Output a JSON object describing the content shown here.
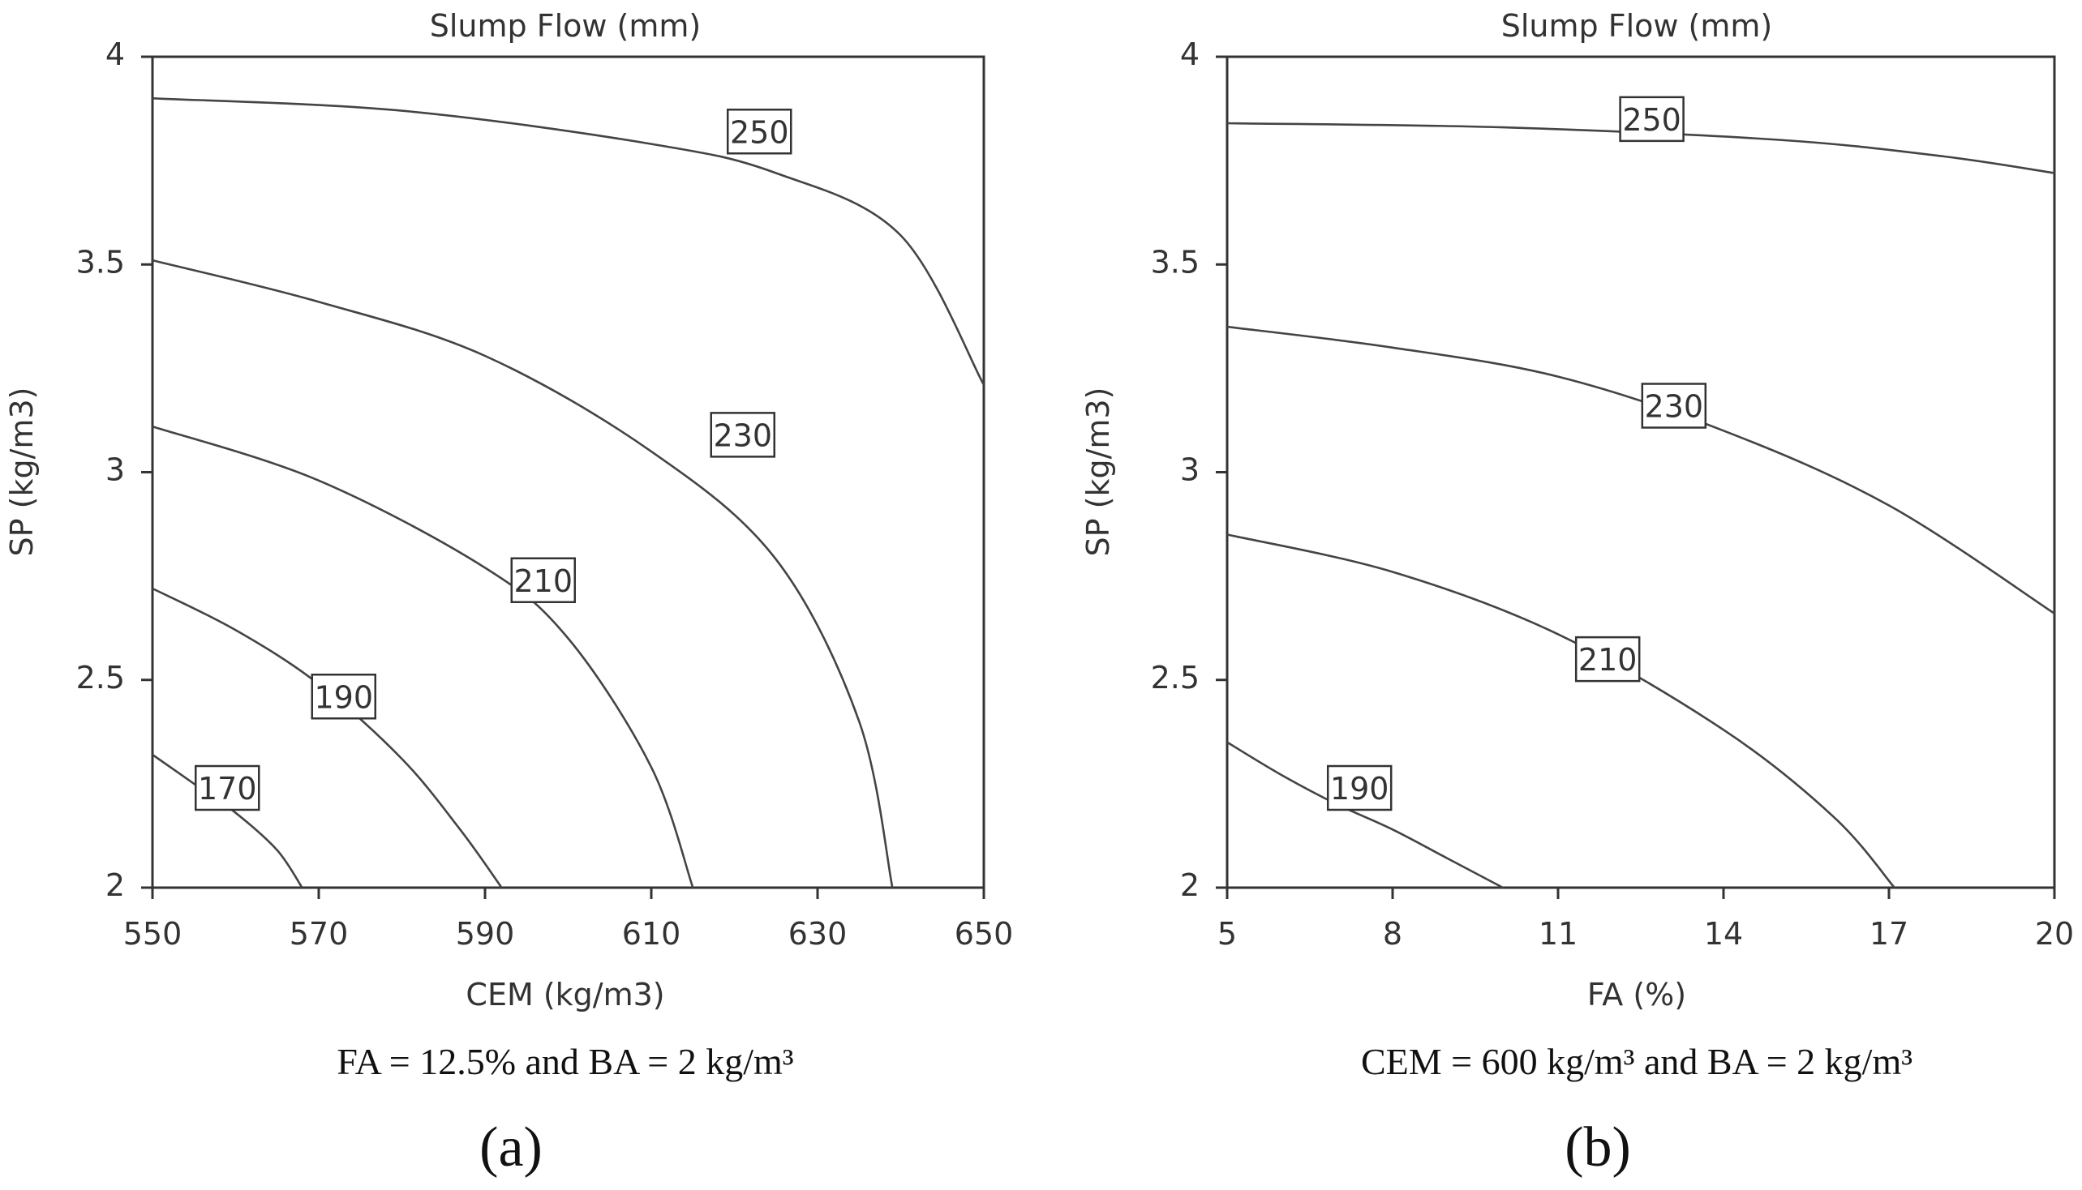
{
  "chart_data": [
    {
      "type": "contour",
      "panel_label": "(a)",
      "title": "Slump Flow (mm)",
      "xlabel": "CEM (kg/m3)",
      "ylabel": "SP (kg/m3)",
      "caption": "FA = 12.5% and BA = 2 kg/m³",
      "xlim": [
        550,
        650
      ],
      "ylim": [
        2,
        4
      ],
      "x_ticks": [
        "550",
        "570",
        "590",
        "610",
        "630",
        "650"
      ],
      "y_ticks": [
        "2",
        "2.5",
        "3",
        "3.5",
        "4"
      ],
      "levels": [
        {
          "level": 170,
          "label": "170",
          "label_at": [
            559,
            2.24
          ],
          "points": [
            [
              550,
              2.32
            ],
            [
              555,
              2.25
            ],
            [
              560,
              2.18
            ],
            [
              565,
              2.09
            ],
            [
              568,
              2.0
            ]
          ]
        },
        {
          "level": 190,
          "label": "190",
          "label_at": [
            573,
            2.46
          ],
          "points": [
            [
              550,
              2.72
            ],
            [
              560,
              2.62
            ],
            [
              570,
              2.49
            ],
            [
              580,
              2.31
            ],
            [
              587,
              2.14
            ],
            [
              592,
              2.0
            ]
          ]
        },
        {
          "level": 210,
          "label": "210",
          "label_at": [
            597,
            2.74
          ],
          "points": [
            [
              550,
              3.11
            ],
            [
              570,
              2.98
            ],
            [
              590,
              2.77
            ],
            [
              600,
              2.6
            ],
            [
              610,
              2.29
            ],
            [
              615,
              2.0
            ]
          ]
        },
        {
          "level": 230,
          "label": "230",
          "label_at": [
            621,
            3.09
          ],
          "points": [
            [
              550,
              3.51
            ],
            [
              570,
              3.41
            ],
            [
              590,
              3.28
            ],
            [
              610,
              3.05
            ],
            [
              625,
              2.79
            ],
            [
              635,
              2.4
            ],
            [
              639,
              2.0
            ]
          ]
        },
        {
          "level": 250,
          "label": "250",
          "label_at": [
            623,
            3.82
          ],
          "points": [
            [
              550,
              3.9
            ],
            [
              580,
              3.87
            ],
            [
              610,
              3.79
            ],
            [
              625,
              3.72
            ],
            [
              640,
              3.57
            ],
            [
              650,
              3.21
            ]
          ]
        }
      ]
    },
    {
      "type": "contour",
      "panel_label": "(b)",
      "title": "Slump Flow (mm)",
      "xlabel": "FA (%)",
      "ylabel": "SP (kg/m3)",
      "caption": "CEM = 600 kg/m³ and BA = 2 kg/m³",
      "xlim": [
        5,
        20
      ],
      "ylim": [
        2,
        4
      ],
      "x_ticks": [
        "5",
        "8",
        "11",
        "14",
        "17",
        "20"
      ],
      "y_ticks": [
        "2",
        "2.5",
        "3",
        "3.5",
        "4"
      ],
      "levels": [
        {
          "level": 190,
          "label": "190",
          "label_at": [
            7.4,
            2.24
          ],
          "points": [
            [
              5,
              2.35
            ],
            [
              6,
              2.27
            ],
            [
              7,
              2.2
            ],
            [
              8,
              2.14
            ],
            [
              9,
              2.07
            ],
            [
              10,
              2.0
            ]
          ]
        },
        {
          "level": 210,
          "label": "210",
          "label_at": [
            11.9,
            2.55
          ],
          "points": [
            [
              5,
              2.85
            ],
            [
              8,
              2.76
            ],
            [
              11,
              2.61
            ],
            [
              14,
              2.38
            ],
            [
              16,
              2.17
            ],
            [
              17.1,
              2.0
            ]
          ]
        },
        {
          "level": 230,
          "label": "230",
          "label_at": [
            13.1,
            3.16
          ],
          "points": [
            [
              5,
              3.35
            ],
            [
              8,
              3.3
            ],
            [
              11,
              3.23
            ],
            [
              14,
              3.1
            ],
            [
              17,
              2.92
            ],
            [
              20,
              2.66
            ]
          ]
        },
        {
          "level": 250,
          "label": "250",
          "label_at": [
            12.7,
            3.85
          ],
          "points": [
            [
              5,
              3.84
            ],
            [
              10,
              3.83
            ],
            [
              15,
              3.8
            ],
            [
              18,
              3.76
            ],
            [
              20,
              3.72
            ]
          ]
        }
      ]
    }
  ]
}
